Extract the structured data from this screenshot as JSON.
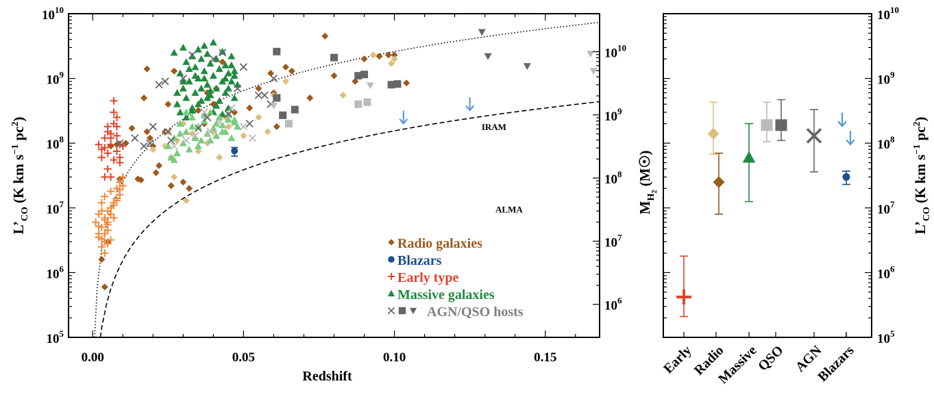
{
  "colors": {
    "radio": "#9C5A1E",
    "radio_light": "#DDBE7A",
    "blazar": "#1E4F8C",
    "blazar_limit": "#5B9BD5",
    "early_dark": "#E0452A",
    "early_light": "#F2873A",
    "massive_dark": "#1F8A3E",
    "massive_light": "#7ACC7E",
    "agn_dark": "#666666",
    "agn_light": "#BBBBBB"
  },
  "chart_data": [
    {
      "id": "left",
      "type": "scatter",
      "xlabel": "Redshift",
      "ylabel": "L’CO (K km s−1 pc2)",
      "ylabel_parts": {
        "base": "L’",
        "sub": "CO",
        "open": " (K km s",
        "exp1": "−1",
        "mid": " pc",
        "exp2": "2",
        "close": ")"
      },
      "y2label": "MH2 (M☉)",
      "y2label_parts": {
        "base": "M",
        "sub": "H",
        "subsub": "2",
        "rest": " (M",
        "sym": "☉",
        "close": ")"
      },
      "xlim": [
        -0.008,
        0.168
      ],
      "ylim_log": [
        100000,
        10000000000
      ],
      "y2lim_log": [
        300000,
        40000000000
      ],
      "xticks": [
        0.0,
        0.05,
        0.1,
        0.15
      ],
      "xtick_labels": [
        "0.00",
        "0.05",
        "0.10",
        "0.15"
      ],
      "yticks_exp": [
        5,
        6,
        7,
        8,
        9,
        10
      ],
      "y2ticks_exp": [
        6,
        7,
        8,
        9,
        10
      ],
      "curve_labels": [
        "IRAM",
        "ALMA"
      ],
      "legend": [
        "Radio galaxies",
        "Blazars",
        "Early type",
        "Massive galaxies",
        "AGN/QSO hosts"
      ],
      "series": [
        {
          "name": "Radio galaxies",
          "marker": "diamond",
          "color": "radio",
          "x": [
            0.003,
            0.004,
            0.005,
            0.006,
            0.008,
            0.009,
            0.011,
            0.013,
            0.015,
            0.016,
            0.017,
            0.018,
            0.018,
            0.019,
            0.02,
            0.021,
            0.022,
            0.024,
            0.025,
            0.026,
            0.027,
            0.03,
            0.032,
            0.035,
            0.037,
            0.038,
            0.04,
            0.041,
            0.043,
            0.047,
            0.052,
            0.055,
            0.059,
            0.06,
            0.061,
            0.064,
            0.066,
            0.072,
            0.077,
            0.08,
            0.087,
            0.09,
            0.095,
            0.098,
            0.1,
            0.104
          ],
          "y": [
            1600000,
            600000,
            3000000,
            90000000,
            95000000,
            28000000,
            100000000,
            170000000,
            28000000,
            27000000,
            500000000,
            150000000,
            1400000000,
            120000000,
            90000000,
            35000000,
            45000000,
            150000000,
            400000000,
            22000000,
            1300000000,
            25000000,
            20000000,
            320000000,
            200000000,
            600000000,
            400000000,
            700000000,
            1800000000,
            300000000,
            350000000,
            700000000,
            1200000000,
            600000000,
            180000000,
            1500000000,
            1300000000,
            500000000,
            4500000000,
            1100000000,
            900000000,
            2000000000,
            2200000000,
            2300000000,
            2300000000,
            850000000
          ]
        },
        {
          "name": "Radio galaxies (light)",
          "marker": "diamond",
          "color": "radio_light",
          "x": [
            0.02,
            0.024,
            0.025,
            0.026,
            0.027,
            0.028,
            0.03,
            0.031,
            0.033,
            0.035,
            0.038,
            0.04,
            0.042,
            0.044,
            0.045,
            0.05,
            0.055,
            0.058,
            0.06,
            0.064,
            0.083,
            0.093,
            0.099,
            0.1
          ],
          "y": [
            80000000,
            90000000,
            150000000,
            60000000,
            30000000,
            110000000,
            200000000,
            13000000,
            140000000,
            75000000,
            100000000,
            150000000,
            60000000,
            250000000,
            180000000,
            130000000,
            250000000,
            150000000,
            550000000,
            900000000,
            550000000,
            2300000000,
            1700000000,
            2000000000
          ]
        },
        {
          "name": "Blazars",
          "marker": "circle",
          "color": "blazar",
          "x": [
            0.047
          ],
          "y": [
            76000000
          ],
          "yerr_low": [
            13000000
          ],
          "yerr_high": [
            10000000
          ]
        },
        {
          "name": "Blazars (upper limits)",
          "marker": "arrow",
          "color": "blazar_limit",
          "x": [
            0.103,
            0.125
          ],
          "y": [
            250000000,
            400000000
          ]
        },
        {
          "name": "Early type",
          "marker": "plus",
          "color": "early_dark",
          "x": [
            0.002,
            0.003,
            0.004,
            0.004,
            0.005,
            0.005,
            0.006,
            0.006,
            0.006,
            0.007,
            0.007,
            0.007,
            0.008,
            0.008,
            0.008,
            0.009,
            0.009,
            0.01,
            0.005,
            0.004,
            0.006,
            0.008,
            0.007,
            0.009,
            0.003,
            0.005
          ],
          "y": [
            95000000,
            60000000,
            120000000,
            85000000,
            180000000,
            70000000,
            140000000,
            95000000,
            30000000,
            300000000,
            450000000,
            55000000,
            250000000,
            180000000,
            75000000,
            95000000,
            50000000,
            90000000,
            40000000,
            30000000,
            120000000,
            130000000,
            200000000,
            60000000,
            80000000,
            150000000
          ]
        },
        {
          "name": "Early type (light)",
          "marker": "plus",
          "color": "early_light",
          "x": [
            0.001,
            0.002,
            0.002,
            0.003,
            0.003,
            0.003,
            0.004,
            0.004,
            0.004,
            0.004,
            0.005,
            0.005,
            0.005,
            0.006,
            0.006,
            0.006,
            0.007,
            0.007,
            0.008,
            0.008,
            0.009,
            0.009,
            0.01,
            0.01,
            0.002,
            0.003,
            0.004,
            0.005,
            0.006,
            0.007,
            0.008,
            0.009,
            0.003,
            0.004,
            0.005,
            0.002
          ],
          "y": [
            6000000,
            3500000,
            8000000,
            5000000,
            2500000,
            12000000,
            4000000,
            7000000,
            3000000,
            15000000,
            6000000,
            9000000,
            4500000,
            10000000,
            3200000,
            18000000,
            12000000,
            7000000,
            20000000,
            14000000,
            25000000,
            16000000,
            22000000,
            30000000,
            4000000,
            9000000,
            2000000,
            5500000,
            8000000,
            11000000,
            13000000,
            19000000,
            3300000,
            6500000,
            2800000,
            5200000
          ]
        },
        {
          "name": "Massive galaxies",
          "marker": "triangle",
          "color": "massive_dark",
          "x": [
            0.027,
            0.028,
            0.029,
            0.03,
            0.03,
            0.031,
            0.031,
            0.032,
            0.033,
            0.033,
            0.034,
            0.034,
            0.035,
            0.035,
            0.036,
            0.036,
            0.037,
            0.037,
            0.038,
            0.038,
            0.039,
            0.039,
            0.04,
            0.04,
            0.041,
            0.041,
            0.042,
            0.042,
            0.043,
            0.043,
            0.044,
            0.044,
            0.045,
            0.045,
            0.046,
            0.046,
            0.047,
            0.047,
            0.048,
            0.028,
            0.03,
            0.032,
            0.034,
            0.036,
            0.038,
            0.04,
            0.042,
            0.044,
            0.046,
            0.029,
            0.031,
            0.033,
            0.035,
            0.037,
            0.039,
            0.041,
            0.043,
            0.045,
            0.047
          ],
          "y": [
            2500000000,
            400000000,
            1200000000,
            3000000000,
            700000000,
            1800000000,
            500000000,
            900000000,
            2200000000,
            350000000,
            1500000000,
            600000000,
            2800000000,
            1000000000,
            2000000000,
            450000000,
            1300000000,
            3200000000,
            800000000,
            2400000000,
            550000000,
            1700000000,
            1100000000,
            3600000000,
            700000000,
            2000000000,
            1400000000,
            450000000,
            2600000000,
            900000000,
            1600000000,
            600000000,
            1200000000,
            350000000,
            900000000,
            2200000000,
            500000000,
            1300000000,
            800000000,
            600000000,
            900000000,
            1400000000,
            1100000000,
            700000000,
            500000000,
            300000000,
            250000000,
            1000000000,
            1600000000,
            300000000,
            250000000,
            320000000,
            400000000,
            1000000000,
            650000000,
            380000000,
            280000000,
            700000000,
            1100000000
          ]
        },
        {
          "name": "Massive galaxies (light)",
          "marker": "triangle",
          "color": "massive_light",
          "x": [
            0.025,
            0.026,
            0.027,
            0.028,
            0.029,
            0.03,
            0.031,
            0.032,
            0.033,
            0.034,
            0.035,
            0.036,
            0.037,
            0.038,
            0.039,
            0.04,
            0.041,
            0.042,
            0.043,
            0.044,
            0.045,
            0.046,
            0.047,
            0.048,
            0.027,
            0.029,
            0.031,
            0.033,
            0.035,
            0.037,
            0.039,
            0.041,
            0.043,
            0.045,
            0.047
          ],
          "y": [
            90000000,
            60000000,
            120000000,
            70000000,
            200000000,
            100000000,
            150000000,
            80000000,
            250000000,
            120000000,
            180000000,
            110000000,
            220000000,
            140000000,
            300000000,
            170000000,
            130000000,
            250000000,
            190000000,
            150000000,
            230000000,
            120000000,
            210000000,
            180000000,
            55000000,
            140000000,
            300000000,
            180000000,
            90000000,
            270000000,
            110000000,
            200000000,
            150000000,
            280000000,
            230000000
          ]
        },
        {
          "name": "AGN/QSO hosts (crosses)",
          "marker": "cross",
          "color": "agn_dark",
          "x": [
            0.009,
            0.014,
            0.017,
            0.019,
            0.02,
            0.022,
            0.024,
            0.025,
            0.026,
            0.03,
            0.033,
            0.035,
            0.038,
            0.04,
            0.043,
            0.045,
            0.048,
            0.05,
            0.052,
            0.055,
            0.057,
            0.059,
            0.06
          ],
          "y": [
            100000000,
            120000000,
            90000000,
            100000000,
            180000000,
            800000000,
            900000000,
            150000000,
            110000000,
            1000000000,
            2300000000,
            170000000,
            250000000,
            2000000000,
            2500000000,
            280000000,
            700000000,
            1500000000,
            200000000,
            550000000,
            550000000,
            400000000,
            1000000000
          ]
        },
        {
          "name": "AGN/QSO hosts (crosses, light)",
          "marker": "cross",
          "color": "agn_light",
          "x": [
            0.027,
            0.031,
            0.034,
            0.037,
            0.039,
            0.042,
            0.046,
            0.05,
            0.053
          ],
          "y": [
            90000000,
            110000000,
            130000000,
            300000000,
            150000000,
            210000000,
            350000000,
            180000000,
            120000000
          ]
        },
        {
          "name": "AGN/QSO hosts (squares)",
          "marker": "square",
          "color": "agn_dark",
          "x": [
            0.061,
            0.061,
            0.063,
            0.067,
            0.08,
            0.088,
            0.09,
            0.099,
            0.101
          ],
          "y": [
            2600000000,
            500000000,
            270000000,
            330000000,
            2100000000,
            1100000000,
            1150000000,
            800000000,
            820000000
          ]
        },
        {
          "name": "AGN/QSO hosts (squares, light)",
          "marker": "square",
          "color": "agn_light",
          "x": [
            0.065,
            0.088,
            0.091
          ],
          "y": [
            200000000,
            400000000,
            430000000
          ]
        },
        {
          "name": "AGN/QSO hosts (triangles)",
          "marker": "invtriangle",
          "color": "agn_dark",
          "x": [
            0.129,
            0.131,
            0.144
          ],
          "y": [
            5200000000,
            2200000000,
            1550000000
          ]
        },
        {
          "name": "AGN/QSO hosts (triangles, light)",
          "marker": "invtriangle",
          "color": "agn_light",
          "x": [
            0.06,
            0.092,
            0.165,
            0.166
          ],
          "y": [
            380000000,
            780000000,
            2400000000,
            1300000000
          ]
        }
      ]
    },
    {
      "id": "right",
      "type": "scatter",
      "ylabel": "L’CO (K km s−1 pc2)",
      "ylim_log": [
        100000,
        10000000000
      ],
      "yticks_exp": [
        5,
        6,
        7,
        8,
        9,
        10
      ],
      "categories": [
        "Early",
        "Radio",
        "Massive",
        "QSO",
        "AGN",
        "Blazars"
      ],
      "points": [
        {
          "category": "Early",
          "marker": "plus",
          "color": "early_dark",
          "y": 420000,
          "y_low": 210000,
          "y_high": 1800000
        },
        {
          "category": "Radio",
          "marker": "diamond",
          "color": "radio_light",
          "y": 140000000,
          "y_low": 68000000,
          "y_high": 430000000
        },
        {
          "category": "Radio",
          "marker": "diamond",
          "color": "radio",
          "y": 25000000,
          "y_low": 8000000,
          "y_high": 70000000
        },
        {
          "category": "Massive",
          "marker": "triangle",
          "color": "massive_dark",
          "y": 60000000,
          "y_low": 12500000,
          "y_high": 200000000
        },
        {
          "category": "QSO",
          "marker": "square",
          "color": "agn_light",
          "y": 190000000,
          "y_low": 105000000,
          "y_high": 430000000
        },
        {
          "category": "QSO",
          "marker": "square",
          "color": "agn_dark",
          "y": 190000000,
          "y_low": 110000000,
          "y_high": 470000000
        },
        {
          "category": "AGN",
          "marker": "cross",
          "color": "agn_dark",
          "y": 130000000,
          "y_low": 36000000,
          "y_high": 330000000
        },
        {
          "category": "Blazars",
          "marker": "circle",
          "color": "blazar",
          "y": 30000000,
          "y_low": 23000000,
          "y_high": 37000000
        },
        {
          "category": "Blazars",
          "marker": "arrow",
          "color": "blazar_limit",
          "y": 230000000
        },
        {
          "category": "Blazars",
          "marker": "arrow",
          "color": "blazar_limit",
          "y": 120000000
        }
      ]
    }
  ]
}
